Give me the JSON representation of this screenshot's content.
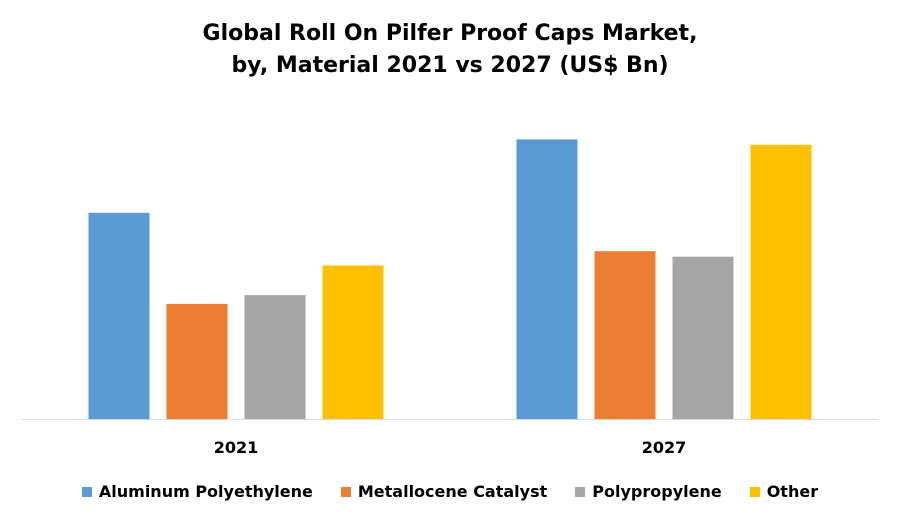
{
  "chart_data": {
    "type": "bar",
    "title_lines": [
      "Global Roll On Pilfer Proof Caps Market,",
      "by, Material 2021 vs 2027 (US$ Bn)"
    ],
    "categories": [
      "2021",
      "2027"
    ],
    "series": [
      {
        "name": "Aluminum Polyethylene",
        "color": "#5B9BD5",
        "values": [
          1.88,
          2.55
        ]
      },
      {
        "name": "Metallocene Catalyst",
        "color": "#ED7D31",
        "values": [
          1.05,
          1.53
        ]
      },
      {
        "name": "Polypropylene",
        "color": "#A5A5A5",
        "values": [
          1.13,
          1.48
        ]
      },
      {
        "name": "Other",
        "color": "#FFC000",
        "values": [
          1.4,
          2.5
        ]
      }
    ],
    "ylim": [
      0,
      3.0
    ],
    "grid": false,
    "legend_position": "bottom",
    "axis_color": "#D9D9D9"
  }
}
